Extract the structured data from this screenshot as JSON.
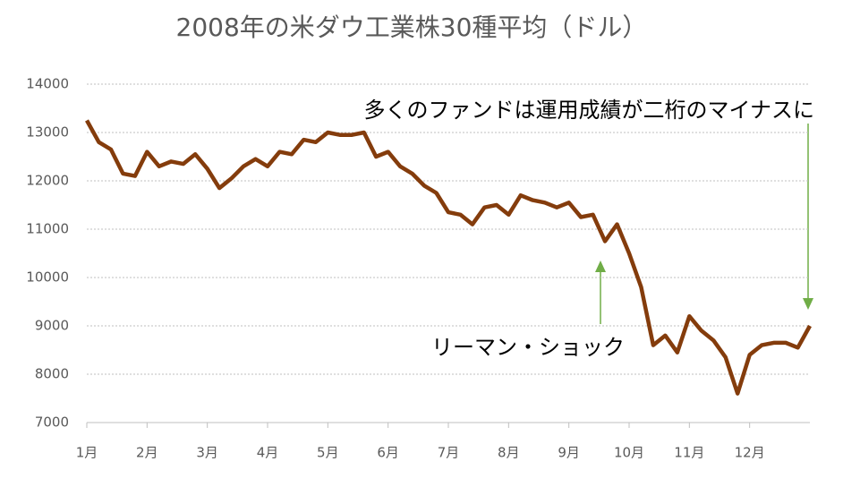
{
  "chart_data": {
    "type": "line",
    "title": "2008年の米ダウ工業株30種平均（ドル）",
    "categories": [
      "1月",
      null,
      null,
      null,
      null,
      "2月",
      null,
      null,
      null,
      null,
      "3月",
      null,
      null,
      null,
      null,
      "4月",
      null,
      null,
      null,
      null,
      "5月",
      null,
      null,
      null,
      null,
      "6月",
      null,
      null,
      null,
      null,
      "7月",
      null,
      null,
      null,
      null,
      "8月",
      null,
      null,
      null,
      null,
      "9月",
      null,
      null,
      null,
      null,
      "10月",
      null,
      null,
      null,
      null,
      "11月",
      null,
      null,
      null,
      null,
      "12月",
      null,
      null,
      null,
      null,
      null
    ],
    "series": [
      {
        "color": "#843c0c",
        "values": [
          13250,
          12800,
          12650,
          12150,
          12100,
          12600,
          12300,
          12400,
          12350,
          12550,
          12250,
          11850,
          12050,
          12300,
          12450,
          12300,
          12600,
          12550,
          12850,
          12800,
          13000,
          12950,
          12950,
          13000,
          12500,
          12600,
          12300,
          12150,
          11900,
          11750,
          11350,
          11300,
          11100,
          11450,
          11500,
          11300,
          11700,
          11600,
          11550,
          11450,
          11550,
          11250,
          11300,
          10750,
          11100,
          10500,
          9800,
          8600,
          8800,
          8450,
          9200,
          8900,
          8700,
          8350,
          7600,
          8400,
          8600,
          8650,
          8650,
          8550,
          9000
        ]
      }
    ],
    "ylim": [
      7000,
      14000
    ],
    "yticks": [
      7000,
      8000,
      9000,
      10000,
      11000,
      12000,
      13000,
      14000
    ],
    "grid": true,
    "annotations": [
      "多くのファンドは運用成績が二桁のマイナスに",
      "リーマン・ショック"
    ]
  }
}
